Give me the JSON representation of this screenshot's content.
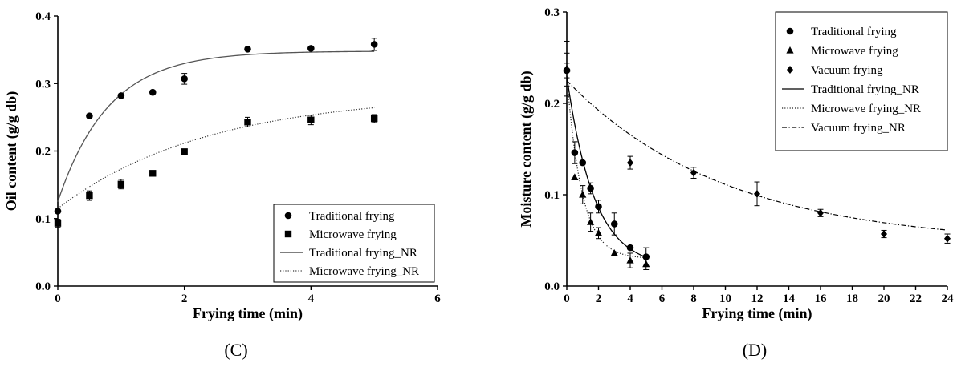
{
  "chart_data": [
    {
      "panel_label": "(C)",
      "type": "scatter",
      "xlabel": "Frying time (min)",
      "ylabel": "Oil content (g/g db)",
      "xlim": [
        0,
        6
      ],
      "ylim": [
        0.0,
        0.4
      ],
      "x_ticks": [
        "0",
        "2",
        "4",
        "6"
      ],
      "y_ticks": [
        "0.0",
        "0.1",
        "0.2",
        "0.3",
        "0.4"
      ],
      "legend_position": "bottom-right",
      "series": [
        {
          "name": "Traditional frying",
          "marker": "circle",
          "x": [
            0,
            0.5,
            1,
            1.5,
            2,
            3,
            4,
            5
          ],
          "y": [
            0.111,
            0.252,
            0.282,
            0.287,
            0.307,
            0.351,
            0.352,
            0.358
          ],
          "err": [
            0,
            0,
            0,
            0,
            0.008,
            0,
            0,
            0.009
          ]
        },
        {
          "name": "Microwave frying",
          "marker": "square",
          "x": [
            0,
            0.5,
            1,
            1.5,
            2,
            3,
            4,
            5
          ],
          "y": [
            0.093,
            0.134,
            0.151,
            0.167,
            0.199,
            0.243,
            0.246,
            0.248
          ],
          "err": [
            0.006,
            0.007,
            0.007,
            0,
            0,
            0.007,
            0.007,
            0.006
          ]
        },
        {
          "name": "Traditional frying_NR",
          "line": "solid",
          "color": "#555555",
          "model": {
            "y0": 0.125,
            "yinf": 0.348,
            "k": 1.25
          }
        },
        {
          "name": "Microwave frying_NR",
          "line": "dotted",
          "color": "#333333",
          "model": {
            "y0": 0.115,
            "yinf": 0.285,
            "k": 0.42
          }
        }
      ]
    },
    {
      "panel_label": "(D)",
      "type": "scatter",
      "xlabel": "Frying time (min)",
      "ylabel": "Moisture content (g/g db)",
      "xlim": [
        0,
        24
      ],
      "ylim": [
        0.0,
        0.3
      ],
      "x_ticks": [
        "0",
        "2",
        "4",
        "6",
        "8",
        "10",
        "12",
        "14",
        "16",
        "18",
        "20",
        "22",
        "24"
      ],
      "y_ticks": [
        "0.0",
        "0.1",
        "0.2",
        "0.3"
      ],
      "legend_position": "top-right",
      "series": [
        {
          "name": "Traditional frying",
          "marker": "circle",
          "x": [
            0,
            0.5,
            1,
            1.5,
            2,
            3,
            4,
            5
          ],
          "y": [
            0.236,
            0.146,
            0.135,
            0.107,
            0.087,
            0.068,
            0.042,
            0.032
          ],
          "err": [
            0.008,
            0.012,
            0,
            0.006,
            0.007,
            0.012,
            0,
            0.01
          ]
        },
        {
          "name": "Microwave frying",
          "marker": "triangle",
          "x": [
            0,
            0.5,
            1,
            1.5,
            2,
            3,
            4,
            5
          ],
          "y": [
            0.238,
            0.119,
            0.1,
            0.07,
            0.058,
            0.036,
            0.028,
            0.024
          ],
          "err": [
            0.03,
            0,
            0.01,
            0.01,
            0.006,
            0,
            0.008,
            0.006
          ]
        },
        {
          "name": "Vacuum frying",
          "marker": "diamond",
          "x": [
            0,
            4,
            8,
            12,
            16,
            20,
            24
          ],
          "y": [
            0.237,
            0.135,
            0.124,
            0.101,
            0.08,
            0.057,
            0.052
          ],
          "err": [
            0.018,
            0.007,
            0.006,
            0.013,
            0.004,
            0.004,
            0.005
          ]
        },
        {
          "name": "Traditional frying_NR",
          "line": "solid",
          "color": "#000000",
          "model": {
            "y0": 0.23,
            "yinf": 0.02,
            "k": 0.58
          }
        },
        {
          "name": "Microwave frying_NR",
          "line": "dotted",
          "color": "#222222",
          "model": {
            "y0": 0.23,
            "yinf": 0.03,
            "k": 1.05
          }
        },
        {
          "name": "Vacuum frying_NR",
          "line": "dashdot",
          "color": "#000000",
          "model": {
            "y0": 0.225,
            "yinf": 0.045,
            "k": 0.1
          }
        }
      ]
    }
  ]
}
